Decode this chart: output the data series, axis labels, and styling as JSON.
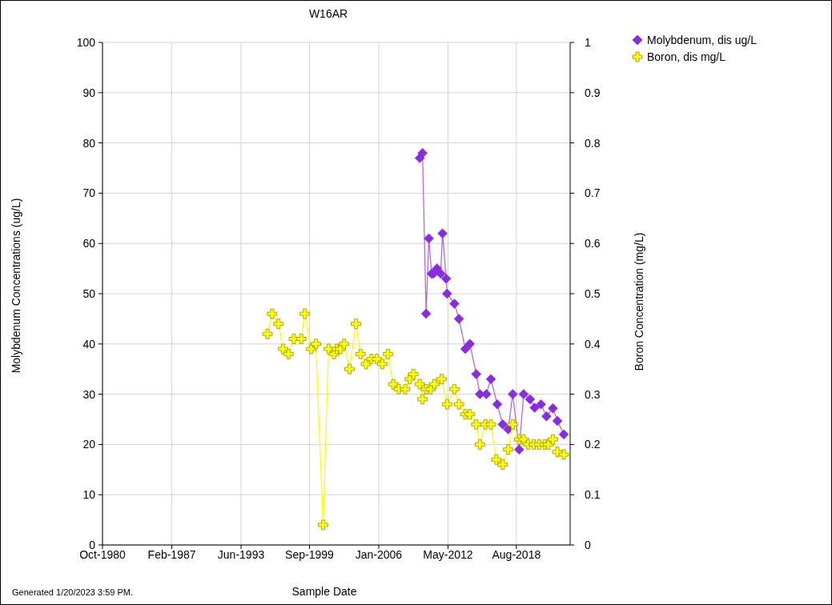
{
  "chart_data": {
    "type": "line",
    "title": "W16AR",
    "xlabel": "Sample Date",
    "ylabel": "Molybdenum Concentrations (ug/L)",
    "y2label": "Boron Concentration (mg/L)",
    "annotations": [
      "Generated 1/20/2023 3:59 PM."
    ],
    "xlim": [
      "1980-10",
      "2023-07"
    ],
    "xticks": [
      {
        "value": "1980-10",
        "label": "Oct-1980"
      },
      {
        "value": "1987-02",
        "label": "Feb-1987"
      },
      {
        "value": "1993-06",
        "label": "Jun-1993"
      },
      {
        "value": "1999-09",
        "label": "Sep-1999"
      },
      {
        "value": "2006-01",
        "label": "Jan-2006"
      },
      {
        "value": "2012-05",
        "label": "May-2012"
      },
      {
        "value": "2018-08",
        "label": "Aug-2018"
      }
    ],
    "ylim": [
      0,
      100
    ],
    "yticks": [
      0,
      10,
      20,
      30,
      40,
      50,
      60,
      70,
      80,
      90,
      100
    ],
    "y2lim": [
      0,
      1
    ],
    "y2ticks": [
      0,
      0.1,
      0.2,
      0.3,
      0.4,
      0.5,
      0.6,
      0.7,
      0.8,
      0.9,
      1
    ],
    "grid": true,
    "legend": "top right",
    "series": [
      {
        "name": "Molybdenum, dis ug/L",
        "color": "#8a2be2",
        "marker": "diamond",
        "x": [
          "2009-10",
          "2010-01",
          "2010-05",
          "2010-08",
          "2010-11",
          "2011-01",
          "2011-05",
          "2011-09",
          "2011-11",
          "2012-03",
          "2012-04",
          "2012-12",
          "2013-05",
          "2013-12",
          "2014-05",
          "2014-12",
          "2015-04",
          "2015-11",
          "2016-04",
          "2016-11",
          "2017-05",
          "2017-11",
          "2018-04",
          "2018-11",
          "2019-04",
          "2019-11",
          "2020-04",
          "2020-11",
          "2021-05",
          "2021-12",
          "2022-05",
          "2022-12"
        ],
        "values": [
          77,
          78,
          46,
          61,
          54,
          54,
          55,
          54,
          62,
          53,
          50,
          48,
          45,
          39,
          40,
          34,
          30,
          30,
          33,
          28,
          24,
          23,
          30,
          19,
          30,
          29,
          27.3,
          28,
          25.6,
          27.2,
          24.7,
          22
        ]
      },
      {
        "name": "Boron, dis mg/L",
        "color": "#ffff00",
        "marker": "cross",
        "axis": "y2",
        "x": [
          "1995-11",
          "1996-04",
          "1996-11",
          "1997-04",
          "1997-10",
          "1998-04",
          "1998-12",
          "1999-04",
          "1999-11",
          "2000-04",
          "2000-12",
          "2001-06",
          "2001-12",
          "2002-03",
          "2002-07",
          "2002-11",
          "2003-05",
          "2003-12",
          "2004-05",
          "2004-11",
          "2005-05",
          "2005-11",
          "2006-05",
          "2006-11",
          "2007-05",
          "2007-11",
          "2008-06",
          "2008-11",
          "2009-03",
          "2009-10",
          "2010-01",
          "2010-05",
          "2010-10",
          "2011-02",
          "2011-10",
          "2012-04",
          "2012-12",
          "2013-05",
          "2013-12",
          "2014-05",
          "2014-12",
          "2015-04",
          "2015-10",
          "2016-04",
          "2016-10",
          "2017-05",
          "2017-11",
          "2018-04",
          "2018-11",
          "2019-04",
          "2019-09",
          "2020-03",
          "2020-09",
          "2021-03",
          "2021-07",
          "2021-12",
          "2022-05",
          "2022-12"
        ],
        "values": [
          0.42,
          0.46,
          0.44,
          0.39,
          0.38,
          0.41,
          0.41,
          0.46,
          0.39,
          0.4,
          0.04,
          0.39,
          0.38,
          0.39,
          0.39,
          0.4,
          0.35,
          0.44,
          0.38,
          0.36,
          0.37,
          0.37,
          0.36,
          0.38,
          0.32,
          0.31,
          0.31,
          0.33,
          0.34,
          0.32,
          0.29,
          0.31,
          0.31,
          0.32,
          0.33,
          0.28,
          0.31,
          0.28,
          0.26,
          0.26,
          0.24,
          0.2,
          0.24,
          0.24,
          0.17,
          0.16,
          0.19,
          0.24,
          0.21,
          0.21,
          0.2,
          0.2,
          0.2,
          0.2,
          0.2,
          0.21,
          0.185,
          0.18
        ]
      }
    ]
  }
}
